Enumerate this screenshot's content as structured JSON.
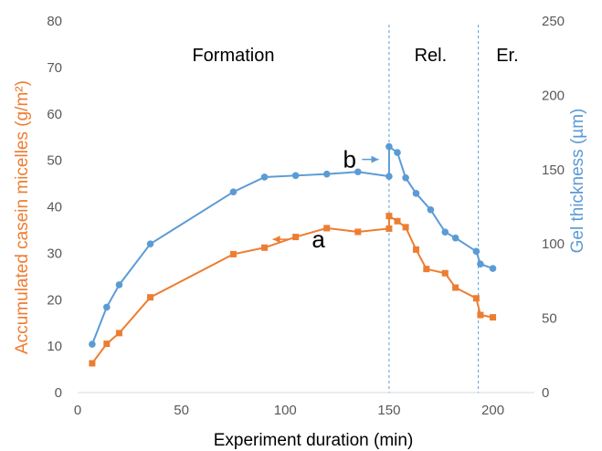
{
  "chart_data": {
    "type": "line",
    "xlabel": "Experiment duration (min)",
    "ylabel": "Accumulated casein micelles (g/m²)",
    "y2label": "Gel thickness (µm)",
    "xlim": [
      0,
      220
    ],
    "ylim": [
      0,
      80
    ],
    "y2lim": [
      0,
      250
    ],
    "x_ticks": [
      0,
      50,
      100,
      150,
      200
    ],
    "y_ticks": [
      0,
      10,
      20,
      30,
      40,
      50,
      60,
      70,
      80
    ],
    "y2_ticks": [
      0,
      50,
      100,
      150,
      200,
      250
    ],
    "grid": false,
    "regions": [
      {
        "label": "Formation",
        "x_center": 75
      },
      {
        "label": "Rel.",
        "x_center": 170
      },
      {
        "label": "Er.",
        "x_center": 207
      }
    ],
    "dividers": [
      150,
      193
    ],
    "series": [
      {
        "name": "a",
        "color": "#ED7D31",
        "axis": "left",
        "marker": "square",
        "points": [
          [
            7,
            6.3
          ],
          [
            14,
            10.5
          ],
          [
            20,
            12.8
          ],
          [
            35,
            20.5
          ],
          [
            75,
            29.8
          ],
          [
            90,
            31.2
          ],
          [
            105,
            33.5
          ],
          [
            120,
            35.4
          ],
          [
            135,
            34.6
          ],
          [
            150,
            35.3
          ],
          [
            150,
            38.0
          ],
          [
            154,
            36.9
          ],
          [
            158,
            35.6
          ],
          [
            163,
            30.8
          ],
          [
            168,
            26.6
          ],
          [
            177,
            25.7
          ],
          [
            182,
            22.6
          ],
          [
            192,
            20.3
          ],
          [
            194,
            16.7
          ],
          [
            200,
            16.2
          ]
        ]
      },
      {
        "name": "b",
        "color": "#5B9BD5",
        "axis": "right",
        "marker": "circle",
        "points": [
          [
            7,
            32.5
          ],
          [
            14,
            57.5
          ],
          [
            20,
            72.5
          ],
          [
            35,
            100
          ],
          [
            75,
            135
          ],
          [
            90,
            145
          ],
          [
            105,
            146
          ],
          [
            120,
            147
          ],
          [
            135,
            148.5
          ],
          [
            150,
            145.5
          ],
          [
            150,
            165.5
          ],
          [
            154,
            161.5
          ],
          [
            158,
            144.5
          ],
          [
            163,
            134
          ],
          [
            170,
            123
          ],
          [
            177,
            108
          ],
          [
            182,
            104
          ],
          [
            192,
            95
          ],
          [
            194,
            86.5
          ],
          [
            200,
            83.5
          ]
        ]
      }
    ],
    "annotations": [
      {
        "label": "a",
        "series": "a",
        "arrow": "left",
        "x_text": 116,
        "y": 33.0,
        "arrow_x_from": 102,
        "arrow_x_to": 94
      },
      {
        "label": "b",
        "series": "b",
        "arrow": "right",
        "x_text": 131,
        "y": 50.2,
        "arrow_x_from": 137,
        "arrow_x_to": 145
      }
    ]
  }
}
